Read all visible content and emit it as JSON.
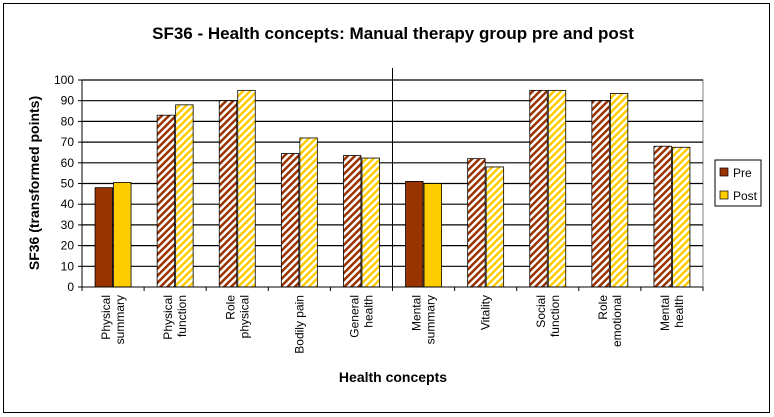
{
  "chart_data": {
    "type": "bar",
    "title": "SF36 - Health concepts: Manual therapy group pre and post",
    "xlabel": "Health concepts",
    "ylabel": "SF36 (transformed points)",
    "ylim": [
      0,
      100
    ],
    "yticks": [
      0,
      10,
      20,
      30,
      40,
      50,
      60,
      70,
      80,
      90,
      100
    ],
    "grid": true,
    "legend_position": "right",
    "categories": [
      [
        "Physical",
        "summary"
      ],
      [
        "Physical",
        "function"
      ],
      [
        "Role",
        "physical"
      ],
      [
        "Bodily pain"
      ],
      [
        "General",
        "health"
      ],
      [
        "Mental",
        "summary"
      ],
      [
        "Vitality"
      ],
      [
        "Social",
        "function"
      ],
      [
        "Role",
        "emotional"
      ],
      [
        "Mental",
        "health"
      ]
    ],
    "summary_categories": [
      0,
      5
    ],
    "series": [
      {
        "name": "Pre",
        "color": "#993300",
        "values": [
          48,
          83,
          90,
          64.5,
          63.5,
          51,
          62,
          95,
          90,
          68
        ]
      },
      {
        "name": "Post",
        "color": "#FFCC00",
        "values": [
          50.5,
          88,
          95,
          72,
          62.3,
          50,
          58,
          95,
          93.5,
          67.5
        ]
      }
    ]
  }
}
